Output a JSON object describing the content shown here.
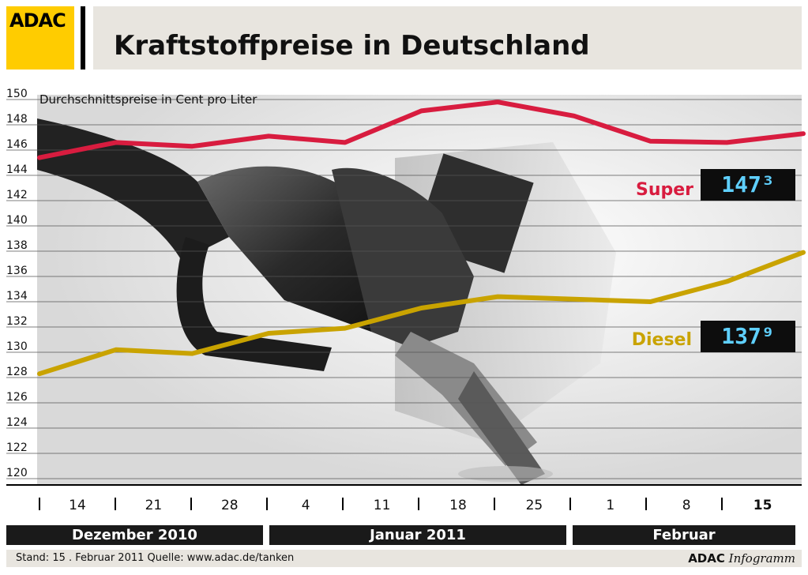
{
  "header": {
    "logo_text": "ADAC",
    "title": "Kraftstoffpreise in Deutschland"
  },
  "colors": {
    "super": "#d81c3f",
    "diesel": "#c9a300",
    "logo": "#ffcc00",
    "band": "#e8e5df"
  },
  "chart_data": {
    "type": "line",
    "subtitle": "Durchschnittspreise in Cent pro Liter",
    "ylim": [
      120,
      150
    ],
    "y_ticks": [
      120,
      122,
      124,
      126,
      128,
      130,
      132,
      134,
      136,
      138,
      140,
      142,
      144,
      146,
      148,
      150
    ],
    "categories": [
      "",
      "14",
      "21",
      "28",
      "4",
      "11",
      "18",
      "25",
      "1",
      "8",
      "15"
    ],
    "grid": true,
    "series": [
      {
        "name": "Super",
        "values": [
          145.4,
          146.6,
          146.3,
          147.1,
          146.6,
          149.1,
          149.8,
          148.7,
          146.7,
          146.6,
          147.3
        ],
        "display": "147³"
      },
      {
        "name": "Diesel",
        "values": [
          128.3,
          130.2,
          129.9,
          131.5,
          131.9,
          133.5,
          134.4,
          134.2,
          134.0,
          135.6,
          137.9
        ],
        "display": "137⁹"
      }
    ]
  },
  "months": [
    {
      "label": "Dezember 2010"
    },
    {
      "label": "Januar 2011"
    },
    {
      "label": "Februar"
    }
  ],
  "footer": {
    "source": "Stand:  15 . Februar 2011   Quelle: www.adac.de/tanken",
    "brand_bold": "ADAC",
    "brand_italic": "Infogramm"
  }
}
